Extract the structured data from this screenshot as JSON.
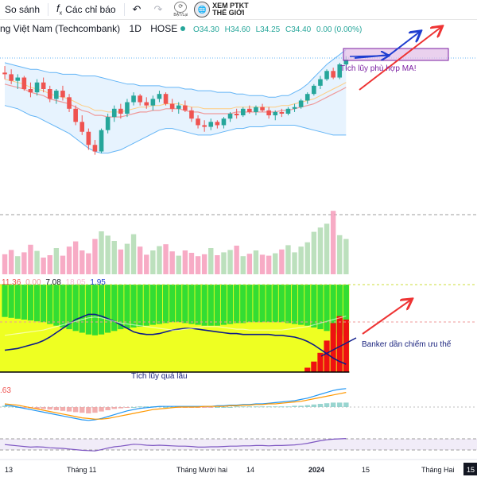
{
  "toolbar": {
    "compare_label": "So sánh",
    "indicators_label": "Các chỉ báo",
    "badge_label": "BẬT/Lại",
    "ptkt_line1": "XEM PTKT",
    "ptkt_line2": "THẾ GIỚI"
  },
  "legend": {
    "name": "ng Việt Nam (Techcombank)",
    "interval": "1D",
    "exchange": "HOSE",
    "open": "O34.30",
    "high": "H34.60",
    "low": "L34.25",
    "close": "C34.40",
    "change": "0.00 (0.00%)",
    "osc_values": [
      "11.36",
      "0.00",
      "7.08",
      "18.05",
      "1.95"
    ],
    "macd_value": ".63"
  },
  "annotations": {
    "accumulation_ma": "Tích lũy phù hợp MA!",
    "banker": "Banker dần chiếm ưu thế",
    "long_accumulation": "Tích lũy quá lâu"
  },
  "x_axis": {
    "labels": [
      "13",
      "Tháng 11",
      "Tháng Mười hai",
      "14",
      "2024",
      "15",
      "Tháng Hai"
    ],
    "highlight": "15"
  },
  "colors": {
    "up": "#26a69a",
    "down": "#ef5350",
    "bb_fill": "#bbdefb",
    "bb_line": "#64b5f6",
    "ma_line": "#ef9a9a",
    "osc_green": "#33dd33",
    "osc_yellow": "#eeff22",
    "osc_red": "#ee1111",
    "annotation_red": "#ee3333",
    "annotation_blue": "#1e3ed0",
    "annotation_purple": "#7b1fa2"
  },
  "chart_data": {
    "type": "candlestick",
    "interval": "1D",
    "candles": [
      [
        35.0,
        35.4,
        34.6,
        34.9
      ],
      [
        34.9,
        35.2,
        34.3,
        34.5
      ],
      [
        34.5,
        34.9,
        34.0,
        34.7
      ],
      [
        34.7,
        34.8,
        33.9,
        34.0
      ],
      [
        34.0,
        34.4,
        33.5,
        33.8
      ],
      [
        33.8,
        34.6,
        33.6,
        34.4
      ],
      [
        34.4,
        34.7,
        33.8,
        34.0
      ],
      [
        34.0,
        34.2,
        33.2,
        33.4
      ],
      [
        33.4,
        34.0,
        33.1,
        33.9
      ],
      [
        33.9,
        34.2,
        33.3,
        33.5
      ],
      [
        33.5,
        33.7,
        32.6,
        32.8
      ],
      [
        32.8,
        33.0,
        31.8,
        32.0
      ],
      [
        32.0,
        32.4,
        31.2,
        31.4
      ],
      [
        31.4,
        31.6,
        30.3,
        30.6
      ],
      [
        30.6,
        30.9,
        30.0,
        30.2
      ],
      [
        30.2,
        31.6,
        30.1,
        31.5
      ],
      [
        31.5,
        32.5,
        31.3,
        32.3
      ],
      [
        32.3,
        33.0,
        32.0,
        32.8
      ],
      [
        32.8,
        33.1,
        32.2,
        32.5
      ],
      [
        32.5,
        33.4,
        32.3,
        33.2
      ],
      [
        33.2,
        33.8,
        33.0,
        33.6
      ],
      [
        33.6,
        33.7,
        33.0,
        33.2
      ],
      [
        33.2,
        33.5,
        32.8,
        33.0
      ],
      [
        33.0,
        33.6,
        32.7,
        33.4
      ],
      [
        33.4,
        33.9,
        33.2,
        33.7
      ],
      [
        33.7,
        33.8,
        33.0,
        33.1
      ],
      [
        33.1,
        33.4,
        32.6,
        32.8
      ],
      [
        32.8,
        33.2,
        32.5,
        33.0
      ],
      [
        33.0,
        33.3,
        32.6,
        32.7
      ],
      [
        32.7,
        32.9,
        32.0,
        32.2
      ],
      [
        32.2,
        32.4,
        31.6,
        31.8
      ],
      [
        31.8,
        32.1,
        31.4,
        31.7
      ],
      [
        31.7,
        32.2,
        31.5,
        32.0
      ],
      [
        32.0,
        32.1,
        31.6,
        31.8
      ],
      [
        31.8,
        32.3,
        31.6,
        32.2
      ],
      [
        32.2,
        32.6,
        32.0,
        32.5
      ],
      [
        32.5,
        32.8,
        32.2,
        32.4
      ],
      [
        32.4,
        32.9,
        32.3,
        32.8
      ],
      [
        32.8,
        33.0,
        32.5,
        32.6
      ],
      [
        32.6,
        33.0,
        32.4,
        32.9
      ],
      [
        32.9,
        33.1,
        32.6,
        32.7
      ],
      [
        32.7,
        32.9,
        32.2,
        32.4
      ],
      [
        32.4,
        32.7,
        32.1,
        32.6
      ],
      [
        32.6,
        32.8,
        32.3,
        32.5
      ],
      [
        32.5,
        32.9,
        32.4,
        32.8
      ],
      [
        32.8,
        33.1,
        32.6,
        32.9
      ],
      [
        32.9,
        33.4,
        32.8,
        33.3
      ],
      [
        33.3,
        33.8,
        33.1,
        33.7
      ],
      [
        33.7,
        34.3,
        33.6,
        34.2
      ],
      [
        34.2,
        34.8,
        34.0,
        34.6
      ],
      [
        34.6,
        35.2,
        34.5,
        35.1
      ],
      [
        35.1,
        35.3,
        34.6,
        34.7
      ],
      [
        34.7,
        35.6,
        34.6,
        35.5
      ],
      [
        35.5,
        36.0,
        35.2,
        35.8
      ]
    ],
    "bb_upper": [
      35.6,
      35.5,
      35.4,
      35.3,
      35.2,
      35.2,
      35.1,
      35.0,
      35.0,
      34.9,
      34.9,
      34.9,
      34.8,
      34.8,
      34.8,
      34.7,
      34.6,
      34.5,
      34.4,
      34.3,
      34.3,
      34.2,
      34.2,
      34.2,
      34.2,
      34.1,
      34.1,
      34.1,
      34.0,
      34.0,
      33.9,
      33.9,
      33.9,
      33.8,
      33.8,
      33.8,
      33.7,
      33.7,
      33.6,
      33.6,
      33.6,
      33.5,
      33.5,
      33.6,
      33.6,
      33.8,
      34.0,
      34.3,
      34.7,
      35.1,
      35.5,
      35.8,
      36.1,
      36.4
    ],
    "bb_lower": [
      33.0,
      32.9,
      32.8,
      32.6,
      32.4,
      32.3,
      32.1,
      31.9,
      31.7,
      31.5,
      31.3,
      31.0,
      30.7,
      30.4,
      30.2,
      30.1,
      30.1,
      30.2,
      30.3,
      30.5,
      30.7,
      30.9,
      31.1,
      31.3,
      31.5,
      31.6,
      31.6,
      31.5,
      31.4,
      31.3,
      31.2,
      31.2,
      31.2,
      31.3,
      31.4,
      31.5,
      31.6,
      31.6,
      31.7,
      31.7,
      31.7,
      31.8,
      31.8,
      31.8,
      31.8,
      31.8,
      31.7,
      31.6,
      31.5,
      31.4,
      31.3,
      31.2,
      31.2,
      31.2
    ],
    "ma": [
      34.3,
      34.2,
      34.1,
      34.0,
      33.8,
      33.7,
      33.6,
      33.4,
      33.3,
      33.2,
      33.1,
      32.9,
      32.7,
      32.6,
      32.4,
      32.4,
      32.3,
      32.3,
      32.3,
      32.4,
      32.5,
      32.6,
      32.6,
      32.7,
      32.7,
      32.8,
      32.8,
      32.8,
      32.7,
      32.6,
      32.6,
      32.5,
      32.5,
      32.5,
      32.5,
      32.5,
      32.6,
      32.6,
      32.6,
      32.6,
      32.6,
      32.6,
      32.6,
      32.7,
      32.7,
      32.8,
      32.9,
      33.0,
      33.1,
      33.3,
      33.5,
      33.7,
      33.9,
      34.1
    ],
    "volume": [
      4.2,
      5.1,
      3.8,
      4.6,
      6.2,
      4.9,
      3.5,
      4.0,
      5.5,
      3.9,
      5.8,
      6.9,
      5.0,
      4.4,
      7.4,
      9.0,
      8.1,
      7.0,
      5.2,
      6.4,
      8.4,
      5.8,
      4.1,
      5.0,
      5.9,
      6.3,
      4.8,
      3.9,
      5.0,
      4.5,
      3.8,
      4.2,
      5.5,
      4.0,
      4.6,
      5.1,
      6.0,
      3.8,
      4.3,
      5.0,
      4.1,
      3.9,
      4.4,
      5.2,
      6.1,
      4.6,
      5.8,
      6.7,
      8.9,
      9.8,
      10.6,
      13.3,
      8.2,
      7.4
    ],
    "osc_green": [
      98,
      97,
      96,
      95,
      94,
      93,
      92,
      90,
      88,
      86,
      84,
      82,
      80,
      78,
      77,
      78,
      80,
      82,
      84,
      85,
      86,
      87,
      88,
      89,
      90,
      91,
      92,
      92,
      91,
      90,
      89,
      88,
      88,
      88,
      89,
      90,
      91,
      91,
      92,
      92,
      92,
      92,
      92,
      92,
      91,
      90,
      89,
      88,
      86,
      84,
      82,
      80,
      78,
      76
    ],
    "osc_red": [
      0,
      0,
      0,
      0,
      0,
      0,
      0,
      0,
      0,
      0,
      0,
      0,
      0,
      0,
      0,
      0,
      0,
      0,
      0,
      0,
      0,
      0,
      0,
      0,
      0,
      0,
      0,
      0,
      0,
      0,
      0,
      0,
      0,
      0,
      0,
      0,
      0,
      0,
      0,
      0,
      0,
      0,
      0,
      0,
      0,
      0,
      0,
      5,
      12,
      22,
      36,
      56,
      64,
      60
    ],
    "osc_blue": [
      25,
      26,
      27,
      29,
      31,
      33,
      36,
      40,
      45,
      50,
      55,
      60,
      63,
      66,
      66,
      64,
      61,
      58,
      54,
      50,
      46,
      44,
      43,
      43,
      44,
      46,
      48,
      49,
      50,
      50,
      49,
      48,
      47,
      46,
      45,
      44,
      44,
      43,
      43,
      43,
      43,
      43,
      42,
      42,
      41,
      40,
      38,
      35,
      31,
      26,
      21,
      16,
      12,
      9
    ],
    "macd_hist": [
      0.2,
      0.1,
      0.0,
      -0.1,
      -0.2,
      -0.3,
      -0.3,
      -0.4,
      -0.5,
      -0.6,
      -0.7,
      -0.8,
      -0.9,
      -1.0,
      -0.9,
      -0.7,
      -0.5,
      -0.3,
      -0.2,
      -0.1,
      0.0,
      0.1,
      0.1,
      0.1,
      0.1,
      0.0,
      0.0,
      -0.1,
      -0.1,
      -0.1,
      -0.1,
      -0.1,
      -0.1,
      0.0,
      0.0,
      0.0,
      0.1,
      0.1,
      0.1,
      0.1,
      0.1,
      0.1,
      0.1,
      0.1,
      0.1,
      0.2,
      0.2,
      0.3,
      0.4,
      0.5,
      0.6,
      0.7,
      0.7,
      0.7
    ],
    "macd_line": [
      0.3,
      0.2,
      0.0,
      -0.2,
      -0.4,
      -0.6,
      -0.8,
      -1.0,
      -1.2,
      -1.4,
      -1.6,
      -1.8,
      -2.0,
      -2.1,
      -2.0,
      -1.8,
      -1.5,
      -1.2,
      -0.9,
      -0.6,
      -0.4,
      -0.2,
      -0.1,
      0.0,
      0.1,
      0.1,
      0.1,
      0.1,
      0.1,
      0.1,
      0.1,
      0.1,
      0.1,
      0.2,
      0.2,
      0.3,
      0.3,
      0.4,
      0.4,
      0.5,
      0.5,
      0.6,
      0.7,
      0.8,
      0.9,
      1.0,
      1.2,
      1.4,
      1.7,
      2.0,
      2.3,
      2.6,
      2.8,
      2.9
    ],
    "signal_line": [
      0.5,
      0.4,
      0.3,
      0.1,
      -0.1,
      -0.3,
      -0.5,
      -0.7,
      -0.9,
      -1.1,
      -1.3,
      -1.5,
      -1.7,
      -1.8,
      -1.9,
      -1.9,
      -1.8,
      -1.6,
      -1.4,
      -1.2,
      -1.0,
      -0.8,
      -0.6,
      -0.4,
      -0.3,
      -0.2,
      -0.1,
      0.0,
      0.0,
      0.0,
      0.0,
      0.1,
      0.1,
      0.1,
      0.1,
      0.2,
      0.2,
      0.3,
      0.3,
      0.4,
      0.4,
      0.5,
      0.5,
      0.6,
      0.7,
      0.8,
      0.9,
      1.1,
      1.3,
      1.5,
      1.7,
      1.9,
      2.1,
      2.3
    ],
    "rsi": [
      52,
      50,
      48,
      46,
      44,
      45,
      44,
      42,
      41,
      40,
      38,
      36,
      34,
      33,
      32,
      36,
      41,
      45,
      47,
      50,
      53,
      52,
      50,
      49,
      50,
      49,
      48,
      47,
      47,
      46,
      44,
      44,
      45,
      45,
      46,
      47,
      47,
      48,
      48,
      49,
      49,
      48,
      49,
      49,
      50,
      51,
      53,
      56,
      60,
      64,
      67,
      69,
      70,
      71
    ]
  }
}
